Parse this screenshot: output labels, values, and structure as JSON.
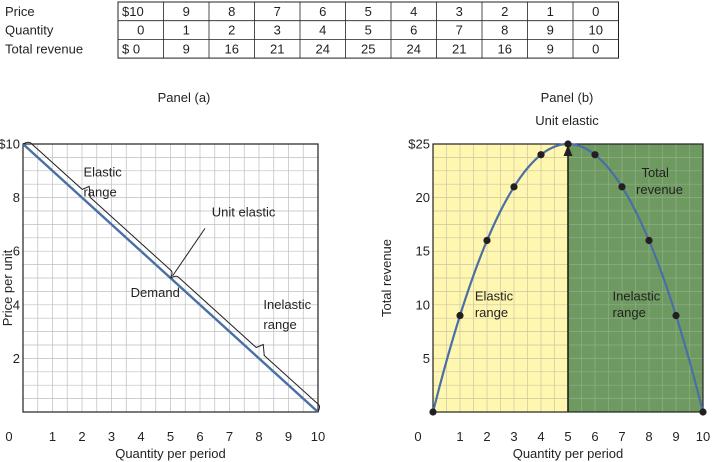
{
  "table": {
    "rows": [
      {
        "label": "Price",
        "cells": [
          "$10",
          "9",
          "8",
          "7",
          "6",
          "5",
          "4",
          "3",
          "2",
          "1",
          "0"
        ]
      },
      {
        "label": "Quantity",
        "cells": [
          "0",
          "1",
          "2",
          "3",
          "4",
          "5",
          "6",
          "7",
          "8",
          "9",
          "10"
        ]
      },
      {
        "label": "Total revenue",
        "cells": [
          "$ 0",
          "9",
          "16",
          "21",
          "24",
          "25",
          "24",
          "21",
          "16",
          "9",
          "0"
        ]
      }
    ]
  },
  "chart_data": [
    {
      "type": "line",
      "title": "Panel (a)",
      "xlabel": "Quantity per period",
      "ylabel": "Price per unit",
      "xlim": [
        0,
        10
      ],
      "ylim": [
        0,
        10
      ],
      "x_ticks": [
        "0",
        "1",
        "2",
        "3",
        "4",
        "5",
        "6",
        "7",
        "8",
        "9",
        "10"
      ],
      "y_ticks": [
        "2",
        "4",
        "6",
        "8",
        "$10"
      ],
      "grid": true,
      "series": [
        {
          "name": "Demand",
          "x": [
            0,
            10
          ],
          "y": [
            10,
            0
          ],
          "color": "#4a6fa5"
        }
      ],
      "annotations": {
        "elastic": [
          "Elastic",
          "range"
        ],
        "unit": "Unit elastic",
        "inelastic": [
          "Inelastic",
          "range"
        ]
      }
    },
    {
      "type": "line",
      "title": "Panel (b)",
      "subtitle": "Unit elastic",
      "xlabel": "Quantity per period",
      "ylabel": "Total revenue",
      "xlim": [
        0,
        10
      ],
      "ylim": [
        0,
        25
      ],
      "x_ticks": [
        "0",
        "1",
        "2",
        "3",
        "4",
        "5",
        "6",
        "7",
        "8",
        "9",
        "10"
      ],
      "y_ticks": [
        "5",
        "10",
        "15",
        "20",
        "$25"
      ],
      "grid": true,
      "series": [
        {
          "name": "Total revenue",
          "x": [
            0,
            1,
            2,
            3,
            4,
            5,
            6,
            7,
            8,
            9,
            10
          ],
          "y": [
            0,
            9,
            16,
            21,
            24,
            25,
            24,
            21,
            16,
            9,
            0
          ],
          "color": "#4a6fa5"
        }
      ],
      "regions": [
        {
          "label": [
            "Elastic",
            "range"
          ],
          "from": 0,
          "to": 5,
          "color": "#fff7b0"
        },
        {
          "label": [
            "Inelastic",
            "range"
          ],
          "from": 5,
          "to": 10,
          "color": "#6e9a62"
        }
      ],
      "curve_label": [
        "Total",
        "revenue"
      ]
    }
  ]
}
